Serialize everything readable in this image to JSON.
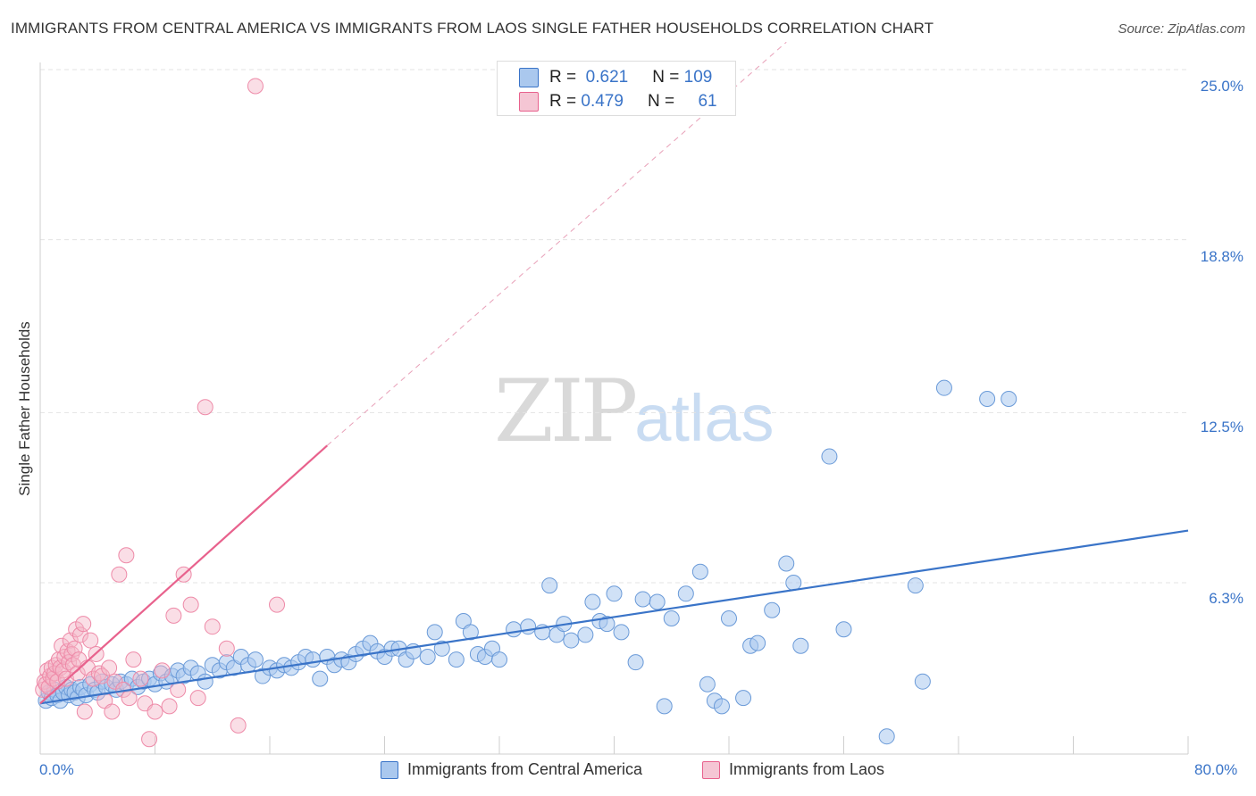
{
  "title": "IMMIGRANTS FROM CENTRAL AMERICA VS IMMIGRANTS FROM LAOS SINGLE FATHER HOUSEHOLDS CORRELATION CHART",
  "source": "Source: ZipAtlas.com",
  "watermark": {
    "zip": "ZIP",
    "atlas": "atlas"
  },
  "colors": {
    "blue": "#3a74c8",
    "blue_fill": "#aac8ee",
    "pink": "#e8628d",
    "pink_fill": "#f5b6c8"
  },
  "legend_top": [
    {
      "r_label": "R =",
      "r_value": "0.621",
      "n_label": "N =",
      "n_value": "109"
    },
    {
      "r_label": "R =",
      "r_value": "0.479",
      "n_label": "N =",
      "n_value": "61"
    }
  ],
  "legend_bottom": [
    "Immigrants from Central America",
    "Immigrants from Laos"
  ],
  "chart_data": {
    "type": "scatter",
    "ylabel": "Single Father Households",
    "xlabel": "",
    "x_tick_labels": [
      "0.0%",
      "80.0%"
    ],
    "y_tick_labels": [
      "25.0%",
      "18.8%",
      "12.5%",
      "6.3%"
    ],
    "y_ticks": [
      25.0,
      18.8,
      12.5,
      6.3
    ],
    "xlim": [
      0,
      80
    ],
    "ylim": [
      0,
      26
    ],
    "grid": true,
    "series": [
      {
        "name": "Immigrants from Central America",
        "color": "#3a74c8",
        "trend": {
          "x": [
            0,
            80
          ],
          "y": [
            1.9,
            8.2
          ],
          "style": "solid"
        },
        "points": [
          [
            0.4,
            2.0
          ],
          [
            0.6,
            2.3
          ],
          [
            0.8,
            2.1
          ],
          [
            1.0,
            2.4
          ],
          [
            1.2,
            2.2
          ],
          [
            1.4,
            2.0
          ],
          [
            1.6,
            2.3
          ],
          [
            1.8,
            2.5
          ],
          [
            2.0,
            2.2
          ],
          [
            2.2,
            2.4
          ],
          [
            2.4,
            2.3
          ],
          [
            2.6,
            2.1
          ],
          [
            2.8,
            2.5
          ],
          [
            3.0,
            2.4
          ],
          [
            3.2,
            2.2
          ],
          [
            3.5,
            2.6
          ],
          [
            3.8,
            2.4
          ],
          [
            4.0,
            2.3
          ],
          [
            4.3,
            2.7
          ],
          [
            4.6,
            2.5
          ],
          [
            5.0,
            2.6
          ],
          [
            5.3,
            2.4
          ],
          [
            5.6,
            2.7
          ],
          [
            6.0,
            2.6
          ],
          [
            6.4,
            2.8
          ],
          [
            6.8,
            2.5
          ],
          [
            7.2,
            2.7
          ],
          [
            7.6,
            2.8
          ],
          [
            8.0,
            2.6
          ],
          [
            8.4,
            3.0
          ],
          [
            8.8,
            2.7
          ],
          [
            9.2,
            2.9
          ],
          [
            9.6,
            3.1
          ],
          [
            10.0,
            2.9
          ],
          [
            10.5,
            3.2
          ],
          [
            11.0,
            3.0
          ],
          [
            11.5,
            2.7
          ],
          [
            12.0,
            3.3
          ],
          [
            12.5,
            3.1
          ],
          [
            13.0,
            3.4
          ],
          [
            13.5,
            3.2
          ],
          [
            14.0,
            3.6
          ],
          [
            14.5,
            3.3
          ],
          [
            15.0,
            3.5
          ],
          [
            15.5,
            2.9
          ],
          [
            16.0,
            3.2
          ],
          [
            16.5,
            3.1
          ],
          [
            17.0,
            3.3
          ],
          [
            17.5,
            3.2
          ],
          [
            18.0,
            3.4
          ],
          [
            18.5,
            3.6
          ],
          [
            19.0,
            3.5
          ],
          [
            19.5,
            2.8
          ],
          [
            20.0,
            3.6
          ],
          [
            20.5,
            3.3
          ],
          [
            21.0,
            3.5
          ],
          [
            21.5,
            3.4
          ],
          [
            22.0,
            3.7
          ],
          [
            22.5,
            3.9
          ],
          [
            23.0,
            4.1
          ],
          [
            23.5,
            3.8
          ],
          [
            24.0,
            3.6
          ],
          [
            24.5,
            3.9
          ],
          [
            25.0,
            3.9
          ],
          [
            25.5,
            3.5
          ],
          [
            26.0,
            3.8
          ],
          [
            27.0,
            3.6
          ],
          [
            27.5,
            4.5
          ],
          [
            28.0,
            3.9
          ],
          [
            29.0,
            3.5
          ],
          [
            29.5,
            4.9
          ],
          [
            30.0,
            4.5
          ],
          [
            30.5,
            3.7
          ],
          [
            31.0,
            3.6
          ],
          [
            31.5,
            3.9
          ],
          [
            32.0,
            3.5
          ],
          [
            33.0,
            4.6
          ],
          [
            34.0,
            4.7
          ],
          [
            35.0,
            4.5
          ],
          [
            35.5,
            6.2
          ],
          [
            36.0,
            4.4
          ],
          [
            36.5,
            4.8
          ],
          [
            37.0,
            4.2
          ],
          [
            38.0,
            4.4
          ],
          [
            38.5,
            5.6
          ],
          [
            39.0,
            4.9
          ],
          [
            39.5,
            4.8
          ],
          [
            40.0,
            5.9
          ],
          [
            40.5,
            4.5
          ],
          [
            41.5,
            3.4
          ],
          [
            42.0,
            5.7
          ],
          [
            43.0,
            5.6
          ],
          [
            43.5,
            1.8
          ],
          [
            44.0,
            5.0
          ],
          [
            45.0,
            5.9
          ],
          [
            46.0,
            6.7
          ],
          [
            46.5,
            2.6
          ],
          [
            47.0,
            2.0
          ],
          [
            47.5,
            1.8
          ],
          [
            48.0,
            5.0
          ],
          [
            49.0,
            2.1
          ],
          [
            49.5,
            4.0
          ],
          [
            50.0,
            4.1
          ],
          [
            51.0,
            5.3
          ],
          [
            52.0,
            7.0
          ],
          [
            52.5,
            6.3
          ],
          [
            53.0,
            4.0
          ],
          [
            55.0,
            10.9
          ],
          [
            56.0,
            4.6
          ],
          [
            59.0,
            0.7
          ],
          [
            61.0,
            6.2
          ],
          [
            61.5,
            2.7
          ],
          [
            63.0,
            13.4
          ],
          [
            66.0,
            13.0
          ],
          [
            67.5,
            13.0
          ]
        ]
      },
      {
        "name": "Immigrants from Laos",
        "color": "#e8628d",
        "trend": {
          "x": [
            0,
            20
          ],
          "y": [
            1.9,
            11.3
          ],
          "style": "solid",
          "extend_to": [
            52,
            26.0
          ]
        },
        "points": [
          [
            0.2,
            2.4
          ],
          [
            0.3,
            2.7
          ],
          [
            0.4,
            2.6
          ],
          [
            0.5,
            3.1
          ],
          [
            0.6,
            2.5
          ],
          [
            0.7,
            2.9
          ],
          [
            0.8,
            3.2
          ],
          [
            0.9,
            2.8
          ],
          [
            1.0,
            3.0
          ],
          [
            1.1,
            3.3
          ],
          [
            1.2,
            2.7
          ],
          [
            1.3,
            3.5
          ],
          [
            1.4,
            3.2
          ],
          [
            1.5,
            4.0
          ],
          [
            1.6,
            3.1
          ],
          [
            1.7,
            3.6
          ],
          [
            1.8,
            2.8
          ],
          [
            1.9,
            3.8
          ],
          [
            2.0,
            3.4
          ],
          [
            2.1,
            4.2
          ],
          [
            2.2,
            3.7
          ],
          [
            2.3,
            3.3
          ],
          [
            2.4,
            3.9
          ],
          [
            2.5,
            4.6
          ],
          [
            2.6,
            3.0
          ],
          [
            2.7,
            3.5
          ],
          [
            2.8,
            4.4
          ],
          [
            3.0,
            4.8
          ],
          [
            3.1,
            1.6
          ],
          [
            3.3,
            3.2
          ],
          [
            3.5,
            4.2
          ],
          [
            3.7,
            2.8
          ],
          [
            3.9,
            3.7
          ],
          [
            4.1,
            3.0
          ],
          [
            4.3,
            2.9
          ],
          [
            4.5,
            2.0
          ],
          [
            4.8,
            3.2
          ],
          [
            5.0,
            1.6
          ],
          [
            5.2,
            2.7
          ],
          [
            5.5,
            6.6
          ],
          [
            5.8,
            2.4
          ],
          [
            6.0,
            7.3
          ],
          [
            6.2,
            2.1
          ],
          [
            6.5,
            3.5
          ],
          [
            7.0,
            2.8
          ],
          [
            7.3,
            1.9
          ],
          [
            7.6,
            0.6
          ],
          [
            8.0,
            1.6
          ],
          [
            8.5,
            3.1
          ],
          [
            9.0,
            1.8
          ],
          [
            9.3,
            5.1
          ],
          [
            9.6,
            2.4
          ],
          [
            10.0,
            6.6
          ],
          [
            10.5,
            5.5
          ],
          [
            11.0,
            2.1
          ],
          [
            11.5,
            12.7
          ],
          [
            12.0,
            4.7
          ],
          [
            13.0,
            3.9
          ],
          [
            13.8,
            1.1
          ],
          [
            15.0,
            24.4
          ],
          [
            16.5,
            5.5
          ]
        ]
      }
    ]
  }
}
